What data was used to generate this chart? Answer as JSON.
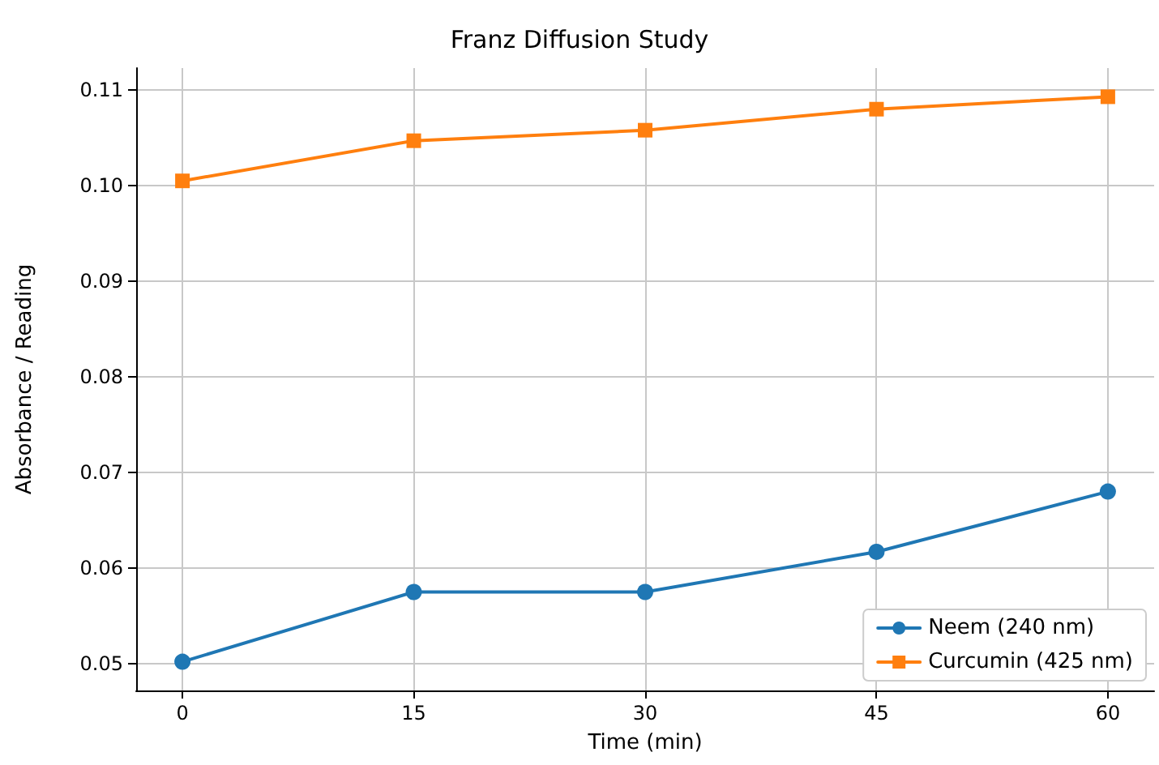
{
  "chart_data": {
    "type": "line",
    "title": "Franz Diffusion Study",
    "xlabel": "Time (min)",
    "ylabel": "Absorbance / Reading",
    "x": [
      0,
      15,
      30,
      45,
      60
    ],
    "series": [
      {
        "name": "Neem (240 nm)",
        "color": "#1f77b4",
        "marker": "circle",
        "values": [
          0.0502,
          0.0575,
          0.0575,
          0.0617,
          0.068
        ]
      },
      {
        "name": "Curcumin (425 nm)",
        "color": "#ff7f0e",
        "marker": "square",
        "values": [
          0.1005,
          0.1047,
          0.1058,
          0.108,
          0.1093
        ]
      }
    ],
    "xlim": [
      -3,
      63
    ],
    "xticks": [
      0,
      15,
      30,
      45,
      60
    ],
    "ylim": [
      0.0472,
      0.1123
    ],
    "yticks": [
      0.05,
      0.06,
      0.07,
      0.08,
      0.09,
      {
        "value": 0.1,
        "label": "0.10"
      },
      0.11
    ],
    "grid": true,
    "legend": "bottom right",
    "line_style": "solid"
  }
}
